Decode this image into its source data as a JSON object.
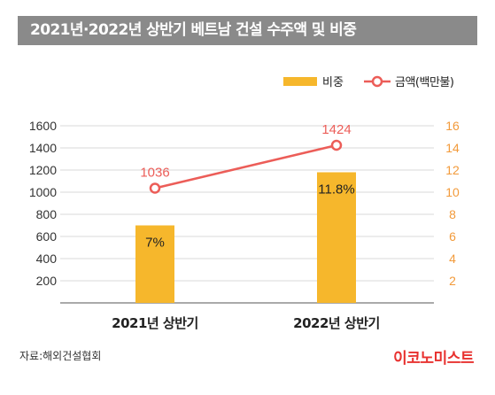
{
  "header": {
    "title": "2021년·2022년 상반기 베트남 건설 수주액 및 비중"
  },
  "source": "자료:해외건설협회",
  "brand": "이코노미스트",
  "colors": {
    "bar": "#f6b72c",
    "line": "#ec5d58",
    "title_bg": "#8a8a8a",
    "axis_left": "#333333",
    "axis_right": "#f29a3a"
  },
  "chart_data": {
    "type": "bar",
    "categories": [
      "2021년 상반기",
      "2022년 상반기"
    ],
    "series": [
      {
        "name": "비중",
        "type": "bar",
        "axis": "right",
        "values": [
          7,
          11.8
        ],
        "labels": [
          "7%",
          "11.8%"
        ]
      },
      {
        "name": "금액(백만불)",
        "type": "line",
        "axis": "left",
        "values": [
          1036,
          1424
        ],
        "labels": [
          "1036",
          "1424"
        ]
      }
    ],
    "y_left": {
      "ticks": [
        "200",
        "400",
        "600",
        "800",
        "1000",
        "1200",
        "1400",
        "1600"
      ],
      "ylim": [
        0,
        1600
      ]
    },
    "y_right": {
      "ticks": [
        "2",
        "4",
        "6",
        "8",
        "10",
        "12",
        "14",
        "16"
      ],
      "ylim": [
        0,
        16
      ]
    },
    "legend_position": "top-right",
    "grid": true
  }
}
